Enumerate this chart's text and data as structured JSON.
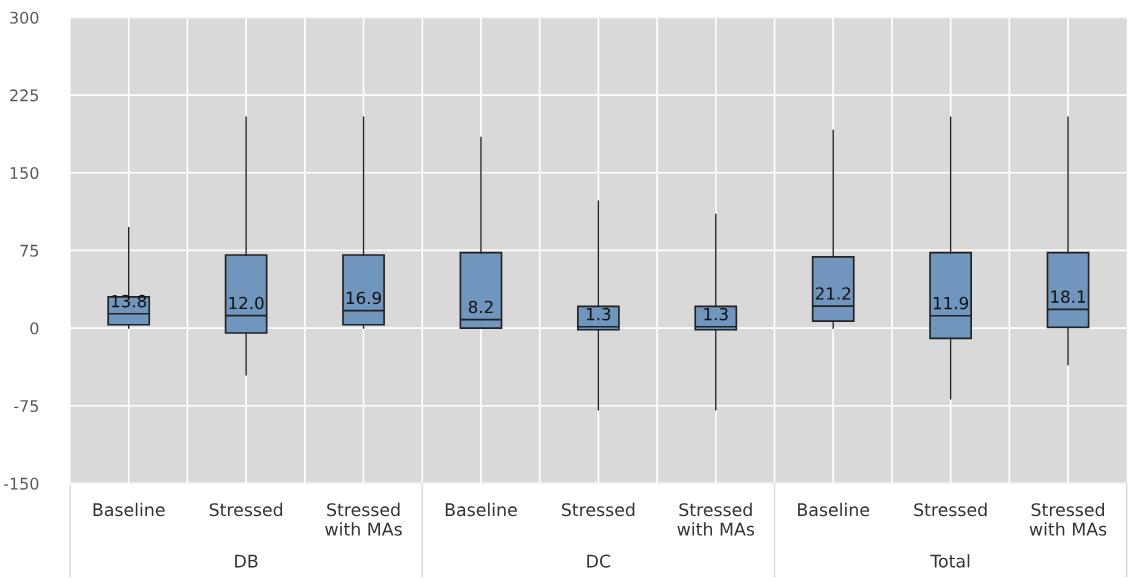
{
  "chart_data": {
    "type": "box",
    "categories": [
      "Baseline",
      "Stressed",
      "Stressed\nwith MAs",
      "Baseline",
      "Stressed",
      "Stressed\nwith MAs",
      "Baseline",
      "Stressed",
      "Stressed\nwith MAs"
    ],
    "boxes": [
      {
        "low": 0,
        "q1": 3.2,
        "median": 13.8,
        "q3": 30.2,
        "high": 96.9
      },
      {
        "low": -45.2,
        "q1": -4.8,
        "median": 12.0,
        "q3": 70.6,
        "high": 203.7
      },
      {
        "low": 0,
        "q1": 3.2,
        "median": 16.9,
        "q3": 70.6,
        "high": 203.7
      },
      {
        "low": 0,
        "q1": 0,
        "median": 8.2,
        "q3": 72.8,
        "high": 184
      },
      {
        "low": -78.9,
        "q1": -1.6,
        "median": 1.3,
        "q3": 20.9,
        "high": 122.6
      },
      {
        "low": -78.9,
        "q1": -1.6,
        "median": 1.3,
        "q3": 20.9,
        "high": 109.7
      },
      {
        "low": 0,
        "q1": 6.7,
        "median": 21.2,
        "q3": 68.7,
        "high": 190.9
      },
      {
        "low": -68.3,
        "q1": -9.9,
        "median": 11.9,
        "q3": 72.8,
        "high": 203.7
      },
      {
        "low": -35.3,
        "q1": 0.6,
        "median": 18.1,
        "q3": 72.8,
        "high": 203.7
      }
    ],
    "value_labels": [
      "13.8",
      "12.0",
      "16.9",
      "8.2",
      "1.3",
      "1.3",
      "21.2",
      "11.9",
      "18.1"
    ],
    "color": "#7096bd",
    "annotations": [
      "DB",
      "DC",
      "Total"
    ],
    "ylim": [
      -150,
      300
    ],
    "yticks": [
      -150,
      -75,
      0,
      75,
      150,
      225,
      300
    ],
    "grid": true,
    "legend": false
  }
}
